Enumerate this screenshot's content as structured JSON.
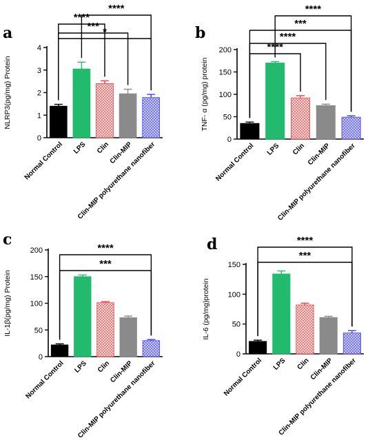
{
  "colors": {
    "normal_control": "#000000",
    "lps": "#22bb6e",
    "clin": "#f03c3c",
    "clin_mip": "#8a8a8a",
    "nanofiber": "#3f3ff0",
    "axis": "#000000"
  },
  "chart_data": [
    {
      "panel": "a",
      "type": "bar",
      "categories": [
        "Normal Control",
        "LPS",
        "Clin",
        "Clin-MIP",
        "Clin-MIP polyurethane nanofiber"
      ],
      "values": [
        1.4,
        3.05,
        2.4,
        1.95,
        1.78
      ],
      "errors": [
        0.08,
        0.3,
        0.12,
        0.2,
        0.14
      ],
      "ylabel": "NLRP3(pg/mg) Protein",
      "ylim": [
        0,
        4
      ],
      "yticks": [
        0,
        1,
        2,
        3,
        4
      ],
      "significance": [
        {
          "from": 0,
          "to": 4,
          "label": "*"
        },
        {
          "from": 0,
          "to": 3,
          "label": "***"
        },
        {
          "from": 0,
          "to": 2,
          "label": "****"
        },
        {
          "from": 1,
          "to": 4,
          "label": "****"
        }
      ]
    },
    {
      "panel": "b",
      "type": "bar",
      "categories": [
        "Normal Control",
        "LPS",
        "Clin",
        "Clin-MIP",
        "Clin-MIP polyurethane nanofiber"
      ],
      "values": [
        35,
        170,
        92,
        75,
        49
      ],
      "errors": [
        3,
        3,
        5,
        3,
        3
      ],
      "ylabel": "TNF- α (pg/mg) protein",
      "ylim": [
        0,
        200
      ],
      "yticks": [
        0,
        50,
        100,
        150,
        200
      ],
      "significance": [
        {
          "from": 0,
          "to": 2,
          "label": "****"
        },
        {
          "from": 0,
          "to": 3,
          "label": "****"
        },
        {
          "from": 0,
          "to": 4,
          "label": "***"
        },
        {
          "from": 1,
          "to": 4,
          "label": "****"
        }
      ]
    },
    {
      "panel": "c",
      "type": "bar",
      "categories": [
        "Normal Control",
        "LPS",
        "Clin",
        "Clin-MIP",
        "Clin-MIP polyurethane nanofiber"
      ],
      "values": [
        22,
        150,
        101,
        73,
        30
      ],
      "errors": [
        2,
        3,
        2,
        3,
        2
      ],
      "ylabel": "IL-1β(pg/mg) Protein",
      "ylim": [
        0,
        200
      ],
      "yticks": [
        0,
        50,
        100,
        150,
        200
      ],
      "significance": [
        {
          "from": 0,
          "to": 4,
          "label": "***"
        },
        {
          "from": 0,
          "to": 4,
          "label": "****"
        }
      ]
    },
    {
      "panel": "d",
      "type": "bar",
      "categories": [
        "Normal Control",
        "LPS",
        "Clin",
        "Clin-MIP",
        "Clin-MIP polyurethane nanofiber"
      ],
      "values": [
        21,
        134,
        82,
        61,
        35
      ],
      "errors": [
        2,
        5,
        3,
        2,
        4
      ],
      "ylabel": "IL-6 (pg/mg)protein",
      "ylim": [
        0,
        150
      ],
      "yticks": [
        0,
        50,
        100,
        150
      ],
      "significance": [
        {
          "from": 0,
          "to": 4,
          "label": "***"
        },
        {
          "from": 0,
          "to": 4,
          "label": "****"
        }
      ]
    }
  ]
}
